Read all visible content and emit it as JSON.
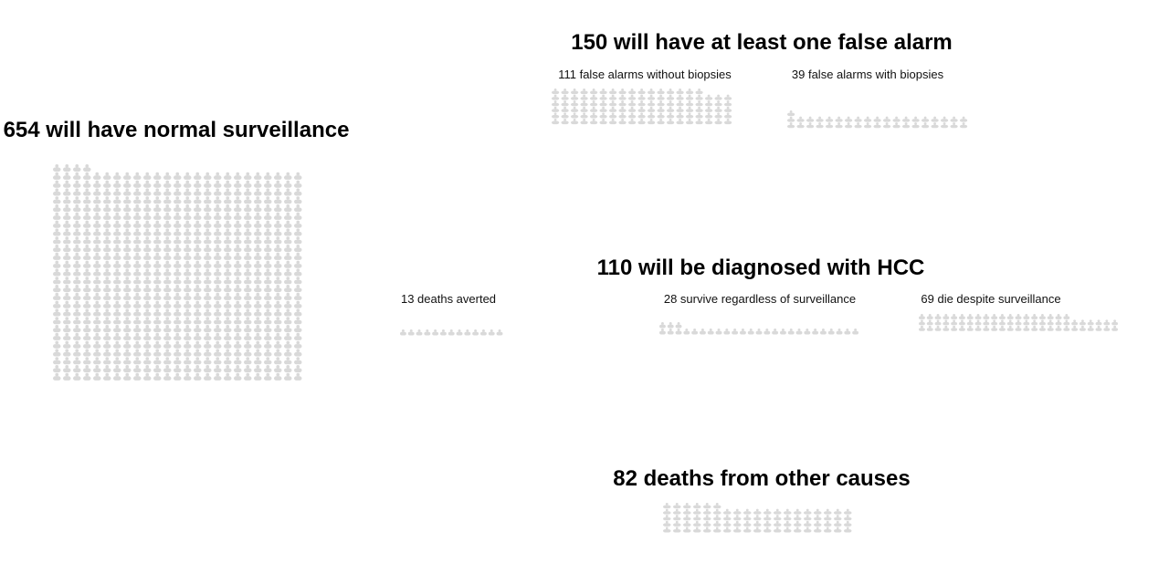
{
  "chart_data": {
    "type": "pictograph",
    "icon": "person-icon",
    "icon_color": "#d9d9d9",
    "groups": [
      {
        "id": "normal",
        "title": "654 will have normal surveillance",
        "count": 654,
        "subgroups": []
      },
      {
        "id": "false_alarm",
        "title": "150 will have at least one false alarm",
        "count": 150,
        "subgroups": [
          {
            "id": "no_biopsy",
            "label": "111 false alarms without biopsies",
            "count": 111
          },
          {
            "id": "biopsy",
            "label": "39 false alarms with biopsies",
            "count": 39
          }
        ]
      },
      {
        "id": "hcc",
        "title": "110 will be diagnosed with HCC",
        "count": 110,
        "subgroups": [
          {
            "id": "averted",
            "label": "13 deaths averted",
            "count": 13
          },
          {
            "id": "survive",
            "label": "28 survive regardless of surveillance",
            "count": 28
          },
          {
            "id": "die",
            "label": "69 die despite surveillance",
            "count": 69
          }
        ]
      },
      {
        "id": "other",
        "title": "82 deaths from other causes",
        "count": 82,
        "subgroups": []
      }
    ]
  }
}
